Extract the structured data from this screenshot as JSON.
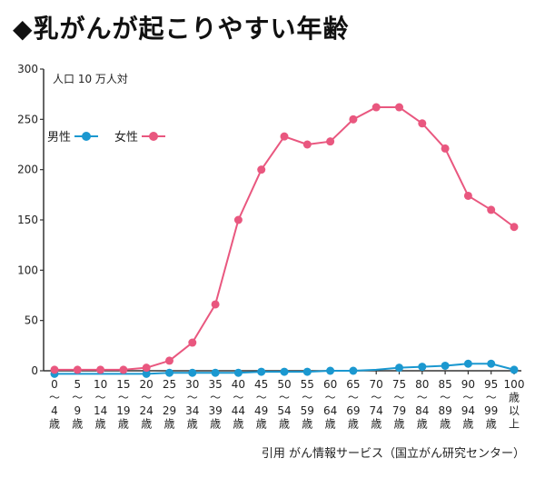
{
  "title": "◆乳がんが起こりやすい年齢",
  "source": "引用 がん情報サービス（国立がん研究センター）",
  "colors": {
    "female": "#e9577f",
    "male": "#1b98d0",
    "axis": "#333333"
  },
  "chart_data": {
    "type": "line",
    "ylabel": "人口 10 万人対",
    "ylim": [
      0,
      300
    ],
    "yticks": [
      0,
      50,
      100,
      150,
      200,
      250,
      300
    ],
    "grid": false,
    "legend": "top-left",
    "categories": [
      [
        "0",
        "〜",
        "4",
        "歳"
      ],
      [
        "5",
        "〜",
        "9",
        "歳"
      ],
      [
        "10",
        "〜",
        "14",
        "歳"
      ],
      [
        "15",
        "〜",
        "19",
        "歳"
      ],
      [
        "20",
        "〜",
        "24",
        "歳"
      ],
      [
        "25",
        "〜",
        "29",
        "歳"
      ],
      [
        "30",
        "〜",
        "34",
        "歳"
      ],
      [
        "35",
        "〜",
        "39",
        "歳"
      ],
      [
        "40",
        "〜",
        "44",
        "歳"
      ],
      [
        "45",
        "〜",
        "49",
        "歳"
      ],
      [
        "50",
        "〜",
        "54",
        "歳"
      ],
      [
        "55",
        "〜",
        "59",
        "歳"
      ],
      [
        "60",
        "〜",
        "64",
        "歳"
      ],
      [
        "65",
        "〜",
        "69",
        "歳"
      ],
      [
        "70",
        "〜",
        "74",
        "歳"
      ],
      [
        "75",
        "〜",
        "79",
        "歳"
      ],
      [
        "80",
        "〜",
        "84",
        "歳"
      ],
      [
        "85",
        "〜",
        "89",
        "歳"
      ],
      [
        "90",
        "〜",
        "94",
        "歳"
      ],
      [
        "95",
        "〜",
        "99",
        "歳"
      ],
      [
        "100",
        "歳",
        "以",
        "上"
      ]
    ],
    "series": [
      {
        "name": "男性",
        "key": "male",
        "values": [
          -3,
          -3,
          -3,
          -3,
          -3,
          -2,
          -2,
          -2,
          -2,
          -1,
          -1,
          -1,
          0,
          0,
          1,
          3,
          4,
          5,
          7,
          7,
          1
        ],
        "markers": [
          true,
          false,
          false,
          false,
          true,
          true,
          true,
          true,
          true,
          true,
          true,
          true,
          true,
          true,
          false,
          true,
          true,
          true,
          true,
          true,
          true
        ]
      },
      {
        "name": "女性",
        "key": "female",
        "values": [
          1,
          1,
          1,
          1,
          3,
          10,
          28,
          66,
          150,
          200,
          233,
          225,
          228,
          250,
          262,
          262,
          246,
          221,
          174,
          160,
          143
        ],
        "markers": [
          true,
          true,
          true,
          true,
          true,
          true,
          true,
          true,
          true,
          true,
          true,
          true,
          true,
          true,
          true,
          true,
          true,
          true,
          true,
          true,
          true
        ]
      }
    ]
  }
}
